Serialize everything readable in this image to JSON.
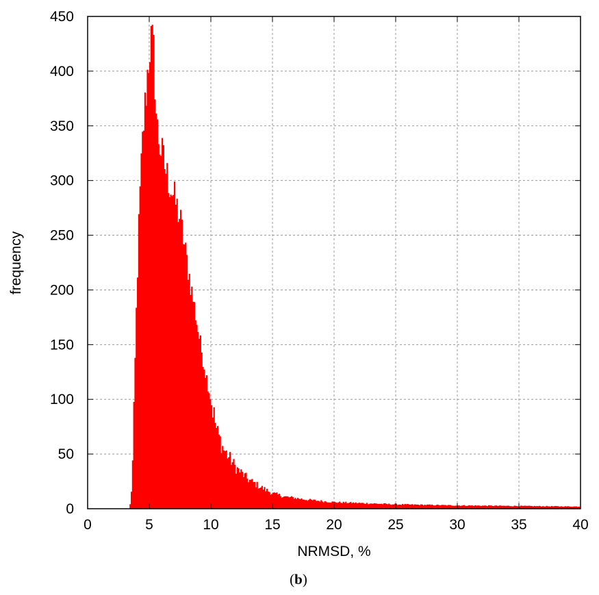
{
  "chart_data": {
    "type": "bar",
    "xlabel": "NRMSD, %",
    "ylabel": "frequency",
    "xlim": [
      0,
      40
    ],
    "ylim": [
      0,
      450
    ],
    "xticks": [
      "0",
      "5",
      "10",
      "15",
      "20",
      "25",
      "30",
      "35",
      "40"
    ],
    "yticks": [
      "0",
      "50",
      "100",
      "150",
      "200",
      "250",
      "300",
      "350",
      "400",
      "450"
    ],
    "grid": true,
    "color": "#ff0000",
    "bin_width": 0.1,
    "profile": [
      [
        3.4,
        0
      ],
      [
        3.5,
        8
      ],
      [
        3.6,
        25
      ],
      [
        3.7,
        60
      ],
      [
        3.8,
        110
      ],
      [
        3.9,
        160
      ],
      [
        4.0,
        200
      ],
      [
        4.1,
        240
      ],
      [
        4.2,
        275
      ],
      [
        4.3,
        300
      ],
      [
        4.4,
        325
      ],
      [
        4.5,
        345
      ],
      [
        4.6,
        360
      ],
      [
        4.7,
        375
      ],
      [
        4.8,
        390
      ],
      [
        4.9,
        405
      ],
      [
        5.0,
        418
      ],
      [
        5.1,
        428
      ],
      [
        5.2,
        425
      ],
      [
        5.3,
        422
      ],
      [
        5.4,
        410
      ],
      [
        5.5,
        375
      ],
      [
        5.6,
        350
      ],
      [
        5.8,
        335
      ],
      [
        6.0,
        325
      ],
      [
        6.5,
        302
      ],
      [
        7.0,
        285
      ],
      [
        7.5,
        265
      ],
      [
        8.0,
        230
      ],
      [
        8.5,
        195
      ],
      [
        9.0,
        160
      ],
      [
        9.5,
        128
      ],
      [
        10.0,
        100
      ],
      [
        10.5,
        70
      ],
      [
        11.0,
        55
      ],
      [
        12.0,
        38
      ],
      [
        13.0,
        27
      ],
      [
        14.0,
        20
      ],
      [
        15.0,
        14
      ],
      [
        16.0,
        11
      ],
      [
        18.0,
        8
      ],
      [
        20.0,
        6
      ],
      [
        25.0,
        4
      ],
      [
        30.0,
        3
      ],
      [
        35.0,
        2.5
      ],
      [
        40.0,
        2
      ]
    ]
  },
  "caption": {
    "open": "(",
    "letter": "b",
    "close": ")"
  }
}
